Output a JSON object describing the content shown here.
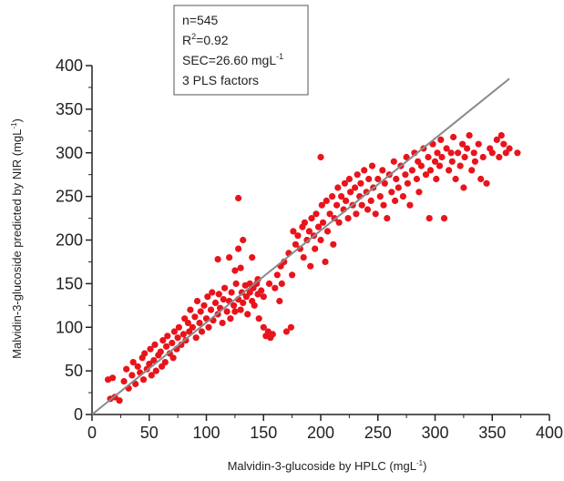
{
  "chart_data": {
    "type": "scatter",
    "title": "",
    "xlabel": "Malvidin-3-glucoside by HPLC (mgL-1)",
    "ylabel": "Malvidin-3-glucoside predicted by NIR (mgL-1)",
    "xlabel_parts": {
      "main": "Malvidin-3-glucoside by HPLC (mgL",
      "sup": "-1",
      "end": ")"
    },
    "ylabel_parts": {
      "main": "Malvidin-3-glucoside predicted by NIR (mgL",
      "sup": "-1",
      "end": ")"
    },
    "xlim": [
      0,
      400
    ],
    "ylim": [
      0,
      400
    ],
    "xticks": [
      0,
      50,
      100,
      150,
      200,
      250,
      300,
      350,
      400
    ],
    "yticks": [
      0,
      50,
      100,
      150,
      200,
      250,
      300,
      350,
      400
    ],
    "grid": false,
    "point_color": "#e8141c",
    "line_color": "#8a8a8a",
    "reference_line": {
      "x": [
        0,
        365
      ],
      "y": [
        0,
        385
      ]
    },
    "stats_box": {
      "n": "n=545",
      "r2_main": "R",
      "r2_sup": "2",
      "r2_value": "=0.92",
      "sec_main": "SEC=26.60 mgL",
      "sec_sup": "-1",
      "factors": "3 PLS factors"
    },
    "points": [
      [
        14,
        40
      ],
      [
        16,
        18
      ],
      [
        18,
        42
      ],
      [
        20,
        20
      ],
      [
        24,
        16
      ],
      [
        28,
        38
      ],
      [
        30,
        52
      ],
      [
        32,
        30
      ],
      [
        35,
        45
      ],
      [
        36,
        60
      ],
      [
        38,
        35
      ],
      [
        40,
        55
      ],
      [
        42,
        48
      ],
      [
        44,
        65
      ],
      [
        45,
        40
      ],
      [
        46,
        70
      ],
      [
        48,
        52
      ],
      [
        50,
        58
      ],
      [
        51,
        75
      ],
      [
        52,
        45
      ],
      [
        54,
        62
      ],
      [
        55,
        80
      ],
      [
        56,
        50
      ],
      [
        58,
        68
      ],
      [
        60,
        72
      ],
      [
        61,
        55
      ],
      [
        62,
        85
      ],
      [
        64,
        60
      ],
      [
        65,
        78
      ],
      [
        66,
        90
      ],
      [
        68,
        70
      ],
      [
        70,
        82
      ],
      [
        71,
        65
      ],
      [
        72,
        95
      ],
      [
        74,
        75
      ],
      [
        75,
        88
      ],
      [
        76,
        100
      ],
      [
        78,
        80
      ],
      [
        80,
        92
      ],
      [
        81,
        110
      ],
      [
        82,
        85
      ],
      [
        84,
        105
      ],
      [
        85,
        95
      ],
      [
        86,
        120
      ],
      [
        88,
        100
      ],
      [
        90,
        112
      ],
      [
        91,
        88
      ],
      [
        92,
        130
      ],
      [
        94,
        105
      ],
      [
        95,
        118
      ],
      [
        96,
        95
      ],
      [
        98,
        125
      ],
      [
        100,
        110
      ],
      [
        101,
        135
      ],
      [
        102,
        100
      ],
      [
        104,
        120
      ],
      [
        105,
        140
      ],
      [
        106,
        108
      ],
      [
        108,
        128
      ],
      [
        110,
        115
      ],
      [
        111,
        138
      ],
      [
        112,
        122
      ],
      [
        114,
        105
      ],
      [
        115,
        132
      ],
      [
        116,
        145
      ],
      [
        118,
        118
      ],
      [
        120,
        130
      ],
      [
        121,
        110
      ],
      [
        122,
        140
      ],
      [
        124,
        125
      ],
      [
        125,
        118
      ],
      [
        126,
        150
      ],
      [
        128,
        132
      ],
      [
        130,
        120
      ],
      [
        131,
        140
      ],
      [
        132,
        128
      ],
      [
        134,
        148
      ],
      [
        135,
        135
      ],
      [
        136,
        115
      ],
      [
        138,
        140
      ],
      [
        140,
        130
      ],
      [
        141,
        145
      ],
      [
        142,
        125
      ],
      [
        144,
        150
      ],
      [
        145,
        138
      ],
      [
        146,
        110
      ],
      [
        148,
        142
      ],
      [
        150,
        135
      ],
      [
        150,
        100
      ],
      [
        152,
        90
      ],
      [
        154,
        95
      ],
      [
        155,
        150
      ],
      [
        156,
        88
      ],
      [
        158,
        92
      ],
      [
        160,
        145
      ],
      [
        162,
        160
      ],
      [
        164,
        130
      ],
      [
        165,
        170
      ],
      [
        166,
        150
      ],
      [
        168,
        175
      ],
      [
        170,
        95
      ],
      [
        172,
        185
      ],
      [
        174,
        100
      ],
      [
        175,
        160
      ],
      [
        176,
        210
      ],
      [
        178,
        195
      ],
      [
        180,
        205
      ],
      [
        182,
        190
      ],
      [
        184,
        215
      ],
      [
        185,
        180
      ],
      [
        186,
        220
      ],
      [
        188,
        200
      ],
      [
        190,
        210
      ],
      [
        191,
        170
      ],
      [
        192,
        225
      ],
      [
        194,
        205
      ],
      [
        195,
        190
      ],
      [
        196,
        230
      ],
      [
        198,
        215
      ],
      [
        200,
        295
      ],
      [
        200,
        200
      ],
      [
        201,
        240
      ],
      [
        202,
        220
      ],
      [
        204,
        175
      ],
      [
        205,
        245
      ],
      [
        206,
        210
      ],
      [
        208,
        230
      ],
      [
        210,
        250
      ],
      [
        211,
        195
      ],
      [
        212,
        225
      ],
      [
        214,
        240
      ],
      [
        215,
        260
      ],
      [
        216,
        220
      ],
      [
        218,
        250
      ],
      [
        220,
        235
      ],
      [
        221,
        265
      ],
      [
        222,
        245
      ],
      [
        224,
        225
      ],
      [
        225,
        270
      ],
      [
        226,
        255
      ],
      [
        228,
        240
      ],
      [
        230,
        260
      ],
      [
        231,
        230
      ],
      [
        232,
        275
      ],
      [
        234,
        250
      ],
      [
        235,
        265
      ],
      [
        236,
        240
      ],
      [
        238,
        280
      ],
      [
        240,
        255
      ],
      [
        241,
        235
      ],
      [
        242,
        270
      ],
      [
        244,
        245
      ],
      [
        245,
        285
      ],
      [
        246,
        260
      ],
      [
        248,
        230
      ],
      [
        250,
        270
      ],
      [
        252,
        250
      ],
      [
        254,
        280
      ],
      [
        255,
        240
      ],
      [
        256,
        265
      ],
      [
        258,
        225
      ],
      [
        260,
        275
      ],
      [
        262,
        255
      ],
      [
        264,
        290
      ],
      [
        265,
        245
      ],
      [
        266,
        270
      ],
      [
        268,
        260
      ],
      [
        270,
        285
      ],
      [
        272,
        250
      ],
      [
        274,
        275
      ],
      [
        275,
        295
      ],
      [
        276,
        265
      ],
      [
        278,
        240
      ],
      [
        280,
        280
      ],
      [
        282,
        300
      ],
      [
        284,
        270
      ],
      [
        285,
        290
      ],
      [
        286,
        255
      ],
      [
        288,
        285
      ],
      [
        290,
        305
      ],
      [
        292,
        275
      ],
      [
        294,
        295
      ],
      [
        295,
        225
      ],
      [
        296,
        280
      ],
      [
        298,
        310
      ],
      [
        300,
        290
      ],
      [
        301,
        270
      ],
      [
        302,
        300
      ],
      [
        304,
        285
      ],
      [
        305,
        315
      ],
      [
        306,
        295
      ],
      [
        308,
        225
      ],
      [
        310,
        305
      ],
      [
        312,
        280
      ],
      [
        314,
        300
      ],
      [
        315,
        290
      ],
      [
        316,
        318
      ],
      [
        318,
        270
      ],
      [
        320,
        300
      ],
      [
        322,
        285
      ],
      [
        324,
        310
      ],
      [
        325,
        260
      ],
      [
        326,
        295
      ],
      [
        328,
        305
      ],
      [
        330,
        320
      ],
      [
        332,
        280
      ],
      [
        334,
        300
      ],
      [
        335,
        290
      ],
      [
        338,
        310
      ],
      [
        340,
        270
      ],
      [
        342,
        295
      ],
      [
        345,
        265
      ],
      [
        348,
        305
      ],
      [
        350,
        300
      ],
      [
        354,
        315
      ],
      [
        356,
        295
      ],
      [
        358,
        320
      ],
      [
        360,
        310
      ],
      [
        362,
        300
      ],
      [
        365,
        305
      ],
      [
        372,
        300
      ],
      [
        125,
        165
      ],
      [
        130,
        168
      ],
      [
        120,
        180
      ],
      [
        110,
        178
      ],
      [
        128,
        190
      ],
      [
        132,
        200
      ],
      [
        128,
        248
      ],
      [
        138,
        150
      ],
      [
        145,
        155
      ],
      [
        140,
        180
      ]
    ]
  }
}
